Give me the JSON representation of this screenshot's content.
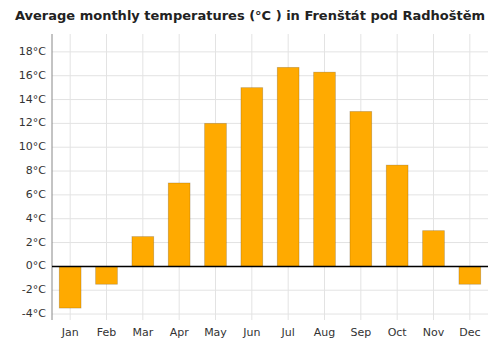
{
  "chart_data": {
    "type": "bar",
    "title": "Average monthly temperatures (°C ) in Frenštát pod Radhoštěm",
    "categories": [
      "Jan",
      "Feb",
      "Mar",
      "Apr",
      "May",
      "Jun",
      "Jul",
      "Aug",
      "Sep",
      "Oct",
      "Nov",
      "Dec"
    ],
    "values": [
      -3.5,
      -1.5,
      2.5,
      7.0,
      12.0,
      15.0,
      16.7,
      16.3,
      13.0,
      8.5,
      3.0,
      -1.5
    ],
    "color": "#FFAA00",
    "ylim": [
      -4.5,
      19.5
    ],
    "yticks": [
      {
        "value": -4,
        "label": "-4°C"
      },
      {
        "value": -2,
        "label": "-2°C"
      },
      {
        "value": 0,
        "label": "0°C"
      },
      {
        "value": 2,
        "label": "2°C"
      },
      {
        "value": 4,
        "label": "4°C"
      },
      {
        "value": 6,
        "label": "6°C"
      },
      {
        "value": 8,
        "label": "8°C"
      },
      {
        "value": 10,
        "label": "10°C"
      },
      {
        "value": 12,
        "label": "12°C"
      },
      {
        "value": 14,
        "label": "14°C"
      },
      {
        "value": 16,
        "label": "16°C"
      },
      {
        "value": 18,
        "label": "18°C"
      }
    ],
    "grid": true
  }
}
